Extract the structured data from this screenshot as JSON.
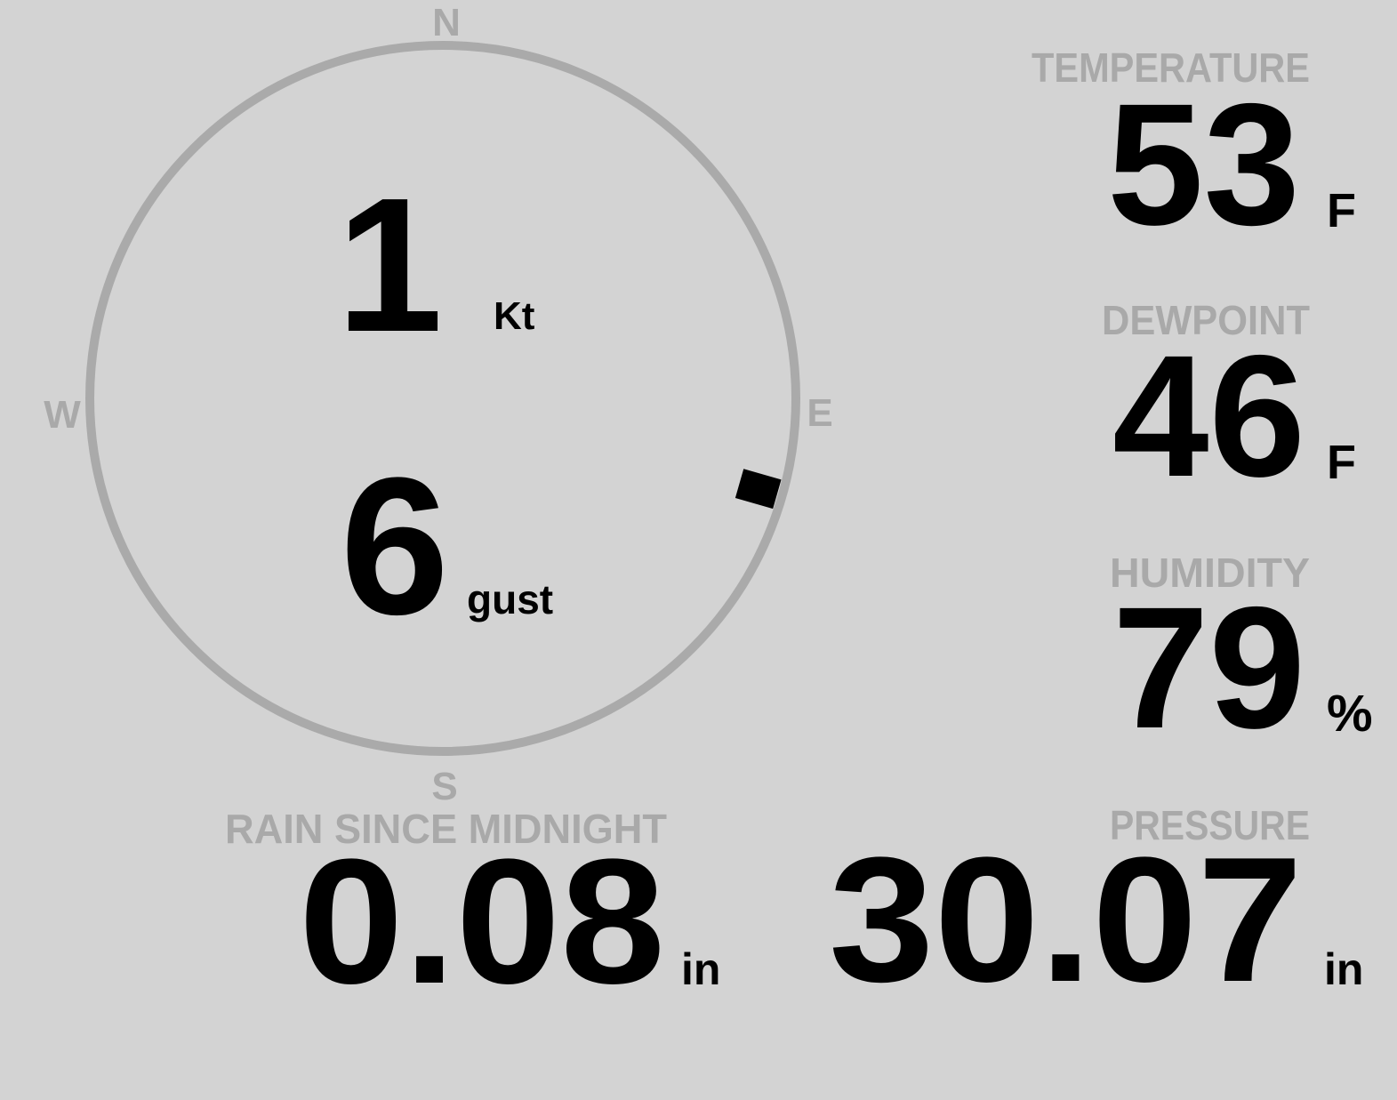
{
  "colors": {
    "background": "#d3d3d3",
    "label": "#a9a9a9",
    "value": "#000000",
    "ring": "#aaaaaa"
  },
  "compass": {
    "north": "N",
    "south": "S",
    "east": "E",
    "west": "W",
    "wind_speed": "1",
    "wind_speed_unit": "Kt",
    "gust": "6",
    "gust_unit": "gust",
    "wind_direction_deg": 106
  },
  "temperature": {
    "label": "TEMPERATURE",
    "value": "53",
    "unit": "F"
  },
  "dewpoint": {
    "label": "DEWPOINT",
    "value": "46",
    "unit": "F"
  },
  "humidity": {
    "label": "HUMIDITY",
    "value": "79",
    "unit": "%"
  },
  "pressure": {
    "label": "PRESSURE",
    "value": "30.07",
    "unit": "in"
  },
  "rain": {
    "label": "RAIN SINCE MIDNIGHT",
    "value": "0.08",
    "unit": "in"
  }
}
